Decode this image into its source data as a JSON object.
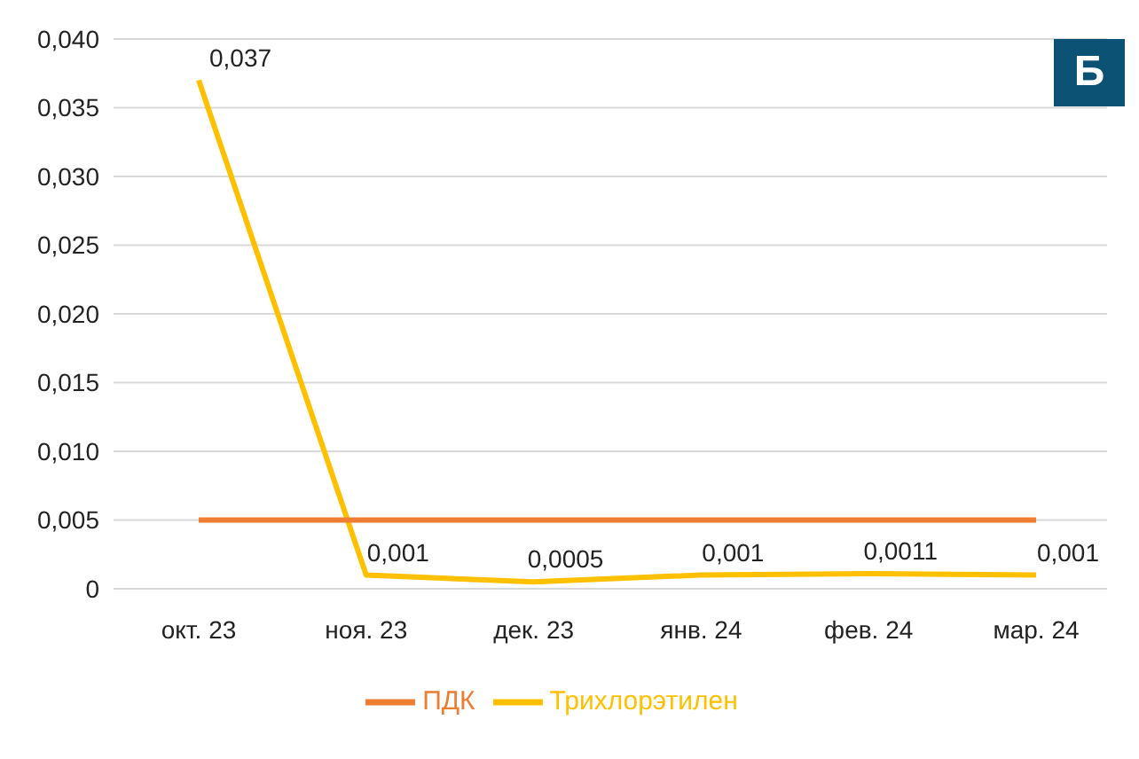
{
  "chart_data": {
    "type": "line",
    "categories": [
      "окт. 23",
      "ноя. 23",
      "дек. 23",
      "янв. 24",
      "фев. 24",
      "мар. 24"
    ],
    "series": [
      {
        "name": "Трихлорэтилен",
        "color": "#ffc000",
        "values": [
          0.037,
          0.001,
          0.0005,
          0.001,
          0.0011,
          0.001
        ],
        "value_labels": [
          "0,037",
          "0,001",
          "0,0005",
          "0,001",
          "0,0011",
          "0,001"
        ]
      },
      {
        "name": "ПДК",
        "color": "#ed7d31",
        "values": [
          0.005,
          0.005,
          0.005,
          0.005,
          0.005,
          0.005
        ]
      }
    ],
    "ylim": [
      0,
      0.04
    ],
    "yticks": [
      {
        "value": 0,
        "label": "0"
      },
      {
        "value": 0.005,
        "label": "0,005"
      },
      {
        "value": 0.01,
        "label": "0,010"
      },
      {
        "value": 0.015,
        "label": "0,015"
      },
      {
        "value": 0.02,
        "label": "0,020"
      },
      {
        "value": 0.025,
        "label": "0,025"
      },
      {
        "value": 0.03,
        "label": "0,030"
      },
      {
        "value": 0.035,
        "label": "0,035"
      },
      {
        "value": 0.04,
        "label": "0,040"
      }
    ],
    "grid": "y",
    "legend": "bottom",
    "marker": "none",
    "line_style": "solid",
    "annotations": [
      "Б"
    ]
  }
}
